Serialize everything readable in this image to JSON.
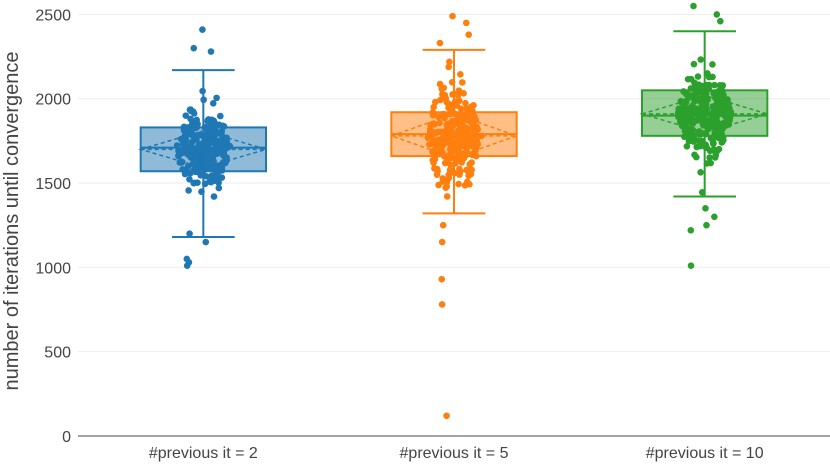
{
  "chart_data": {
    "type": "box",
    "title": "",
    "xlabel": "",
    "ylabel": "number of iterations until convergence",
    "ylim": [
      0,
      2550
    ],
    "yticks": [
      0,
      500,
      1000,
      1500,
      2000,
      2500
    ],
    "grid": true,
    "categories": [
      "#previous it = 2",
      "#previous it = 5",
      "#previous it = 10"
    ],
    "series": [
      {
        "color": "#1f77b4",
        "box": {
          "lowerfence": 1180,
          "q1": 1570,
          "median": 1710,
          "mean": 1700,
          "q3": 1830,
          "upperfence": 2170,
          "sd": 110
        },
        "points": [
          2410,
          2300,
          2280,
          1050,
          1010,
          1030,
          1200,
          1150
        ]
      },
      {
        "color": "#ff7f0e",
        "box": {
          "lowerfence": 1320,
          "q1": 1660,
          "median": 1790,
          "mean": 1780,
          "q3": 1920,
          "upperfence": 2290,
          "sd": 130
        },
        "points": [
          2490,
          2450,
          2380,
          2330,
          1250,
          1150,
          930,
          780,
          120
        ]
      },
      {
        "color": "#2ca02c",
        "box": {
          "lowerfence": 1420,
          "q1": 1780,
          "median": 1900,
          "mean": 1910,
          "q3": 2050,
          "upperfence": 2400,
          "sd": 110
        },
        "points": [
          2550,
          2500,
          2460,
          1350,
          1300,
          1250,
          1220,
          1010
        ]
      }
    ]
  }
}
